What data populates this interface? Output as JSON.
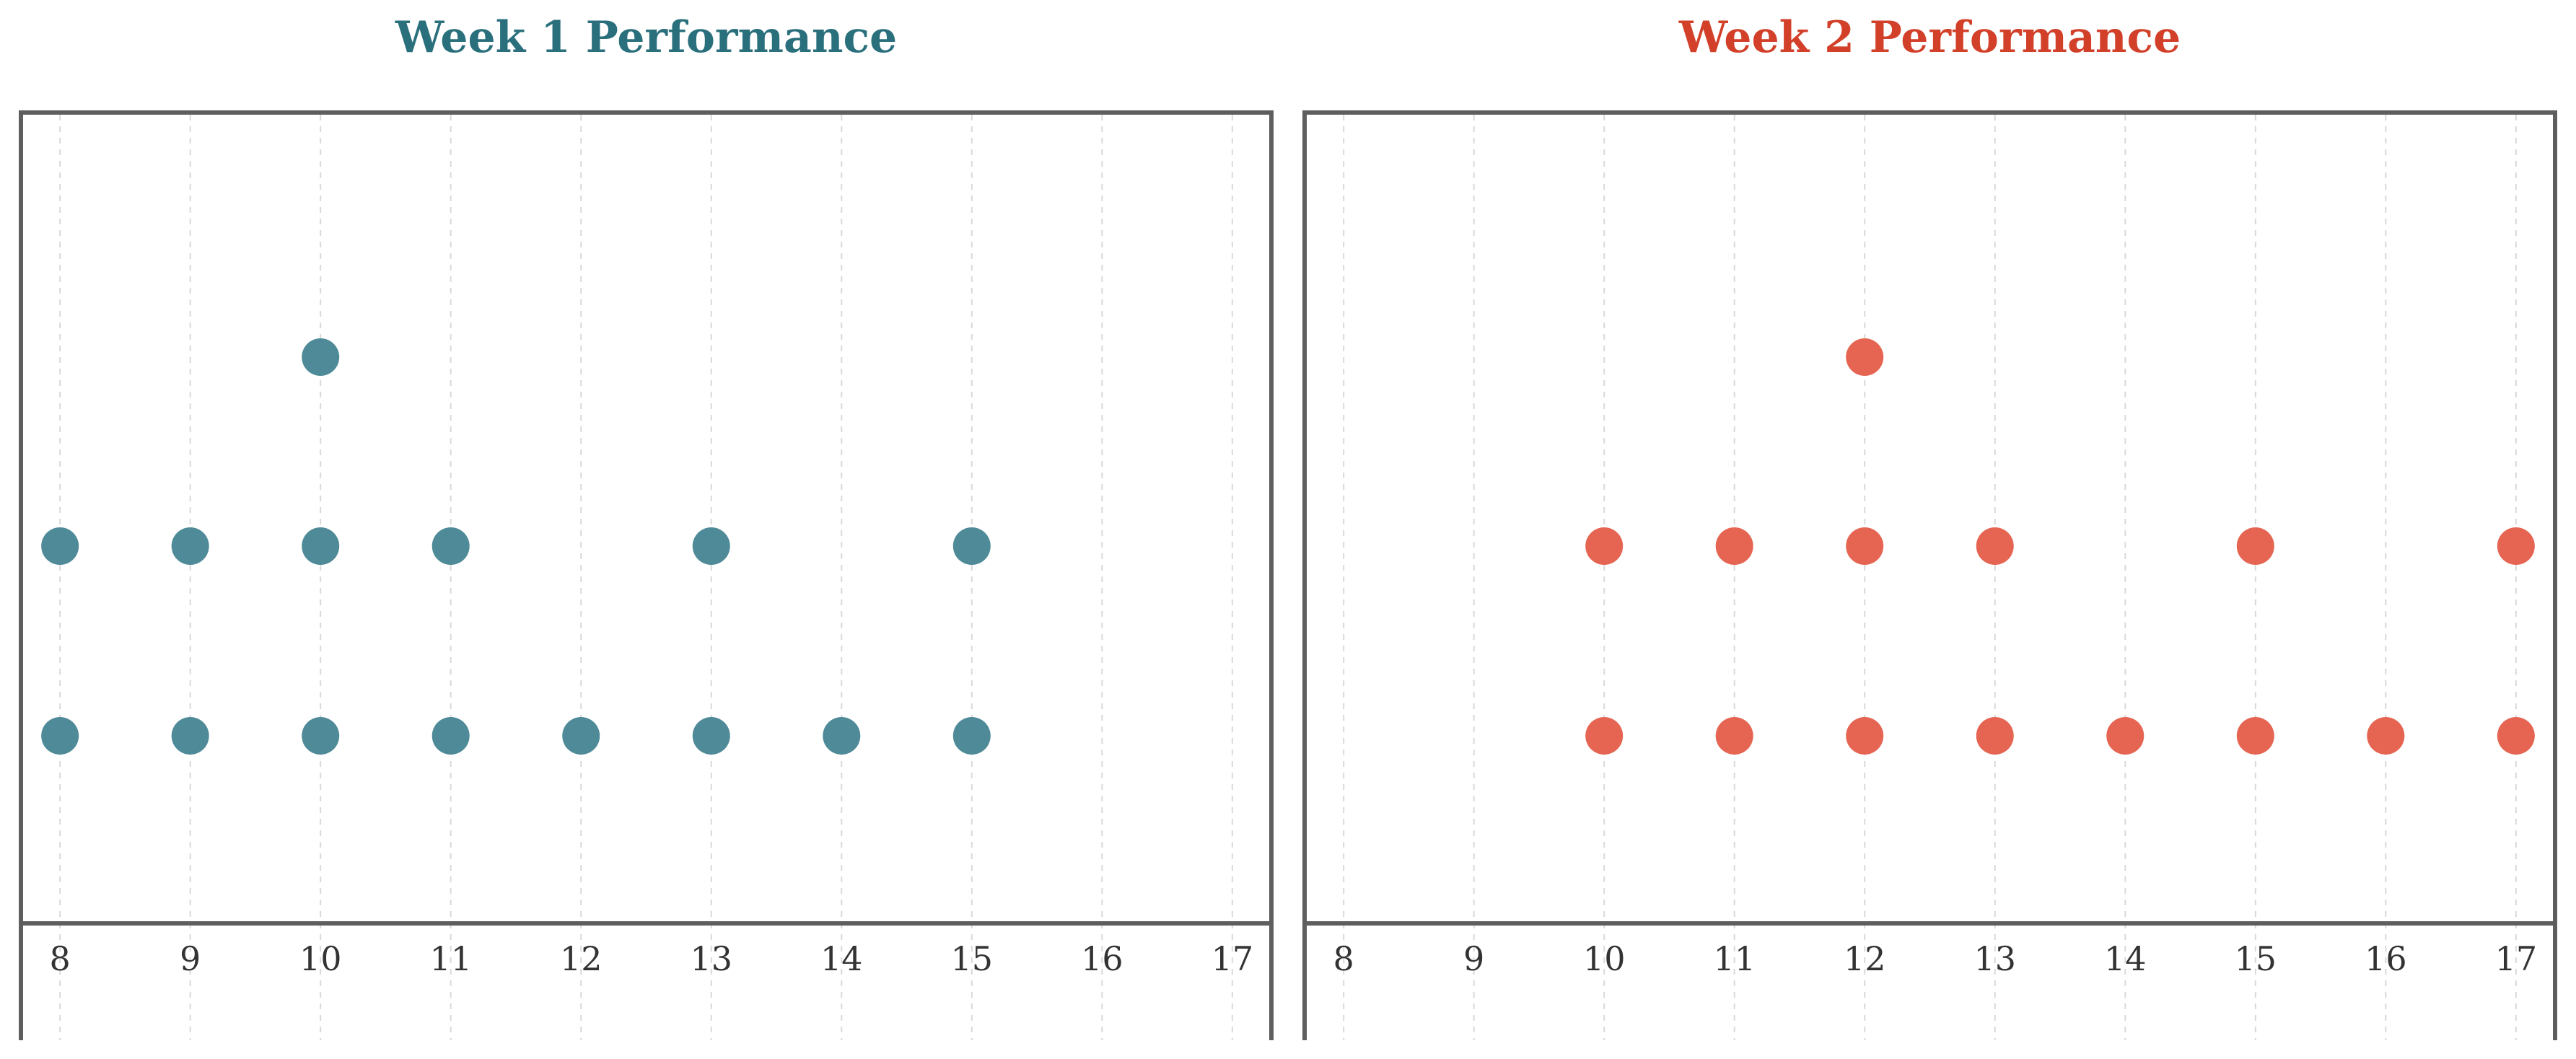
{
  "chart_data": [
    {
      "type": "scatter",
      "subtype": "dot-plot",
      "title": "Week 1 Performance",
      "color": "#2a6f7c",
      "marker_color": "#4e8a97",
      "xlabel": "",
      "ylabel": "",
      "xlim": [
        7.7,
        17.3
      ],
      "xticks": [
        8,
        9,
        10,
        11,
        12,
        13,
        14,
        15,
        16,
        17
      ],
      "grid": "vertical dashed",
      "counts": [
        {
          "x": 8,
          "count": 2
        },
        {
          "x": 9,
          "count": 2
        },
        {
          "x": 10,
          "count": 3
        },
        {
          "x": 11,
          "count": 2
        },
        {
          "x": 12,
          "count": 1
        },
        {
          "x": 13,
          "count": 2
        },
        {
          "x": 14,
          "count": 1
        },
        {
          "x": 15,
          "count": 2
        },
        {
          "x": 16,
          "count": 0
        },
        {
          "x": 17,
          "count": 0
        }
      ]
    },
    {
      "type": "scatter",
      "subtype": "dot-plot",
      "title": "Week 2 Performance",
      "color": "#d2402a",
      "marker_color": "#e56552",
      "xlabel": "",
      "ylabel": "",
      "xlim": [
        7.7,
        17.3
      ],
      "xticks": [
        8,
        9,
        10,
        11,
        12,
        13,
        14,
        15,
        16,
        17
      ],
      "grid": "vertical dashed",
      "counts": [
        {
          "x": 8,
          "count": 0
        },
        {
          "x": 9,
          "count": 0
        },
        {
          "x": 10,
          "count": 2
        },
        {
          "x": 11,
          "count": 2
        },
        {
          "x": 12,
          "count": 3
        },
        {
          "x": 13,
          "count": 2
        },
        {
          "x": 14,
          "count": 1
        },
        {
          "x": 15,
          "count": 2
        },
        {
          "x": 16,
          "count": 1
        },
        {
          "x": 17,
          "count": 2
        }
      ]
    }
  ]
}
